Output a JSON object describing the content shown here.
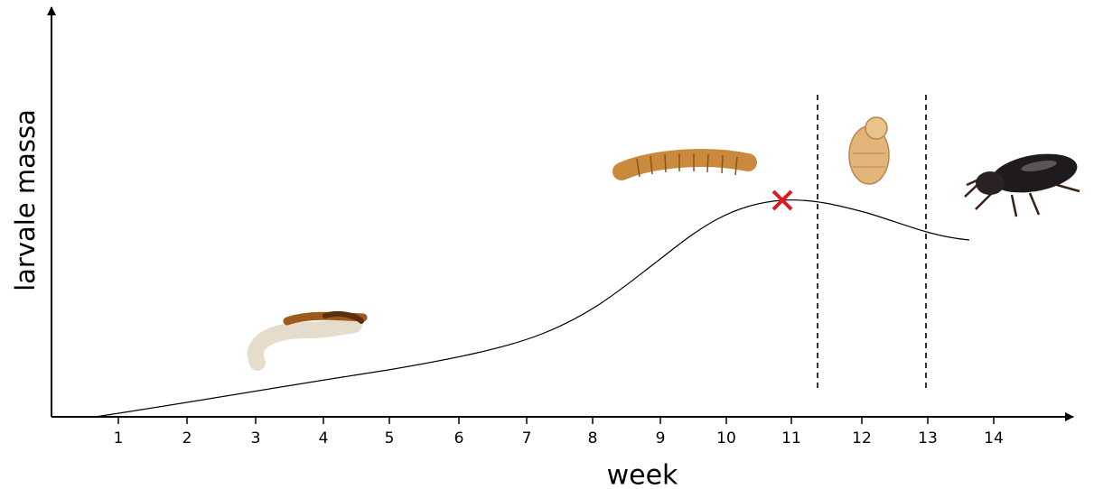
{
  "axes": {
    "y_label": "larvale massa",
    "x_label": "week",
    "x_ticks": [
      "1",
      "2",
      "3",
      "4",
      "5",
      "6",
      "7",
      "8",
      "9",
      "10",
      "11",
      "12",
      "13",
      "14"
    ]
  }
}
